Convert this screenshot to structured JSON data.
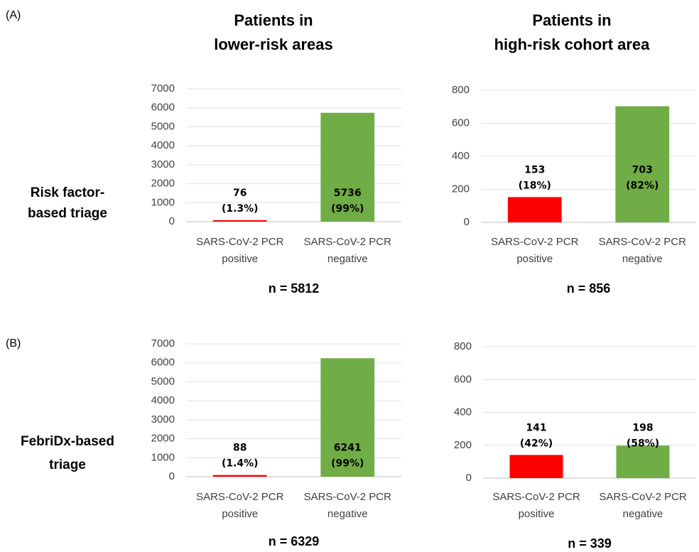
{
  "panel_labels": [
    "(A)",
    "(B)"
  ],
  "column_titles": [
    "Patients in\nlower-risk areas",
    "Patients in\nhigh-risk cohort area"
  ],
  "row_labels": [
    "Risk factor-\nbased triage",
    "FebriDx-based\ntriage"
  ],
  "chart_data": [
    {
      "type": "bar",
      "categories": [
        "SARS-CoV-2 PCR\npositive",
        "SARS-CoV-2 PCR\nnegative"
      ],
      "values": [
        76,
        5736
      ],
      "value_labels": [
        "76\n(1.3%)",
        "5736\n(99%)"
      ],
      "colors": [
        "#ff0000",
        "#70ad47"
      ],
      "ylim": [
        0,
        7000
      ],
      "yticks": [
        0,
        1000,
        2000,
        3000,
        4000,
        5000,
        6000,
        7000
      ],
      "grid": true,
      "n_label": "n = 5812"
    },
    {
      "type": "bar",
      "categories": [
        "SARS-CoV-2 PCR\npositive",
        "SARS-CoV-2 PCR\nnegative"
      ],
      "values": [
        153,
        703
      ],
      "value_labels": [
        "153\n(18%)",
        "703\n(82%)"
      ],
      "colors": [
        "#ff0000",
        "#70ad47"
      ],
      "ylim": [
        0,
        800
      ],
      "yticks": [
        0,
        200,
        400,
        600,
        800
      ],
      "grid": true,
      "n_label": "n = 856"
    },
    {
      "type": "bar",
      "categories": [
        "SARS-CoV-2 PCR\npositive",
        "SARS-CoV-2 PCR\nnegative"
      ],
      "values": [
        88,
        6241
      ],
      "value_labels": [
        "88\n(1.4%)",
        "6241\n(99%)"
      ],
      "colors": [
        "#ff0000",
        "#70ad47"
      ],
      "ylim": [
        0,
        7000
      ],
      "yticks": [
        0,
        1000,
        2000,
        3000,
        4000,
        5000,
        6000,
        7000
      ],
      "grid": true,
      "n_label": "n = 6329"
    },
    {
      "type": "bar",
      "categories": [
        "SARS-CoV-2 PCR\npositive",
        "SARS-CoV-2 PCR\nnegative"
      ],
      "values": [
        141,
        198
      ],
      "value_labels": [
        "141\n(42%)",
        "198\n(58%)"
      ],
      "colors": [
        "#ff0000",
        "#70ad47"
      ],
      "ylim": [
        0,
        800
      ],
      "yticks": [
        0,
        200,
        400,
        600,
        800
      ],
      "grid": true,
      "n_label": "n = 339"
    }
  ]
}
